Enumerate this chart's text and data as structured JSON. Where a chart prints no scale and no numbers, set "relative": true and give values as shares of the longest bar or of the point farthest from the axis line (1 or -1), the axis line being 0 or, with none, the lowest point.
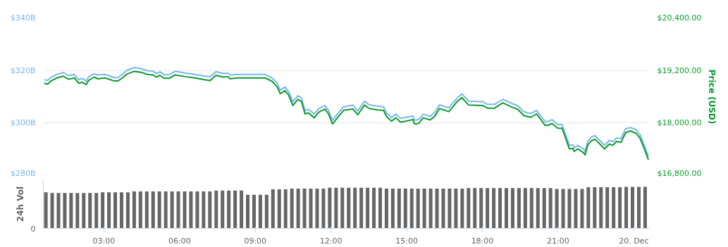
{
  "chart_data": [
    {
      "type": "line",
      "x": [
        0.63,
        0.77,
        0.9,
        1.14,
        1.39,
        1.6,
        1.83,
        2.0,
        2.14,
        2.3,
        2.39,
        2.62,
        2.76,
        3.04,
        3.41,
        3.55,
        3.73,
        3.92,
        4.2,
        4.48,
        4.71,
        4.94,
        5.08,
        5.22,
        5.4,
        5.59,
        5.82,
        6.24,
        6.61,
        6.98,
        7.21,
        7.44,
        7.72,
        7.91,
        8.0,
        8.28,
        9.11,
        9.39,
        9.67,
        9.86,
        9.99,
        10.18,
        10.32,
        10.49,
        10.69,
        10.83,
        10.97,
        11.11,
        11.34,
        11.52,
        11.76,
        11.9,
        12.06,
        12.27,
        12.5,
        12.73,
        12.87,
        13.06,
        13.33,
        13.52,
        13.85,
        14.08,
        14.2,
        14.4,
        14.57,
        14.75,
        14.96,
        15.24,
        15.31,
        15.47,
        15.66,
        15.93,
        16.12,
        16.3,
        16.67,
        17.0,
        17.19,
        17.46,
        18.02,
        18.2,
        18.48,
        18.81,
        19.18,
        19.41,
        19.64,
        19.92,
        20.15,
        20.48,
        20.62,
        20.76,
        20.99,
        21.16,
        21.45,
        21.59,
        21.64,
        21.78,
        22.01,
        22.07,
        22.17,
        22.33,
        22.47,
        22.84,
        23.03,
        23.17,
        23.31,
        23.49,
        23.68,
        23.87,
        24.1,
        24.24,
        24.42,
        24.58
      ],
      "series": [
        {
          "color": "#7cb5ec",
          "values": [
            316.5,
            316.2,
            317.4,
            318.5,
            319.2,
            318.1,
            318.5,
            316.5,
            317.0,
            316.0,
            317.6,
            318.8,
            318.3,
            318.5,
            317.3,
            317.3,
            318.5,
            320.1,
            321.1,
            320.7,
            319.9,
            319.8,
            318.8,
            319.5,
            318.4,
            318.4,
            319.7,
            319.0,
            318.5,
            317.9,
            317.6,
            319.5,
            318.9,
            319.0,
            318.3,
            318.5,
            318.5,
            318.5,
            317.1,
            315.3,
            312.5,
            313.7,
            312.0,
            308.1,
            310.4,
            309.5,
            304.8,
            305.2,
            303.4,
            305.5,
            306.7,
            304.8,
            301.1,
            303.6,
            306.2,
            306.6,
            306.8,
            304.6,
            308.3,
            306.9,
            306.4,
            306.2,
            303.9,
            302.1,
            303.4,
            301.8,
            302.1,
            302.7,
            301.1,
            301.3,
            303.4,
            302.5,
            304.1,
            306.9,
            305.8,
            309.5,
            311.1,
            308.3,
            308.1,
            307.1,
            307.1,
            309.0,
            307.4,
            306.6,
            304.3,
            303.6,
            304.8,
            300.6,
            300.6,
            301.3,
            299.4,
            299.4,
            291.5,
            291.7,
            290.6,
            291.5,
            290.1,
            289.2,
            292.9,
            294.8,
            295.2,
            291.5,
            293.4,
            292.9,
            294.3,
            294.1,
            297.8,
            298.3,
            297.4,
            295.7,
            291.5,
            287.3
          ]
        },
        {
          "color": "#0a9b30",
          "axis": "y2",
          "values": [
            18910,
            18890,
            18960,
            19030,
            19070,
            19000,
            19030,
            18910,
            18930,
            18880,
            18970,
            19050,
            19010,
            19030,
            18960,
            18960,
            19030,
            19120,
            19180,
            19160,
            19110,
            19100,
            19050,
            19090,
            19020,
            19020,
            19100,
            19060,
            19030,
            18990,
            18970,
            19090,
            19050,
            19060,
            19010,
            19030,
            19030,
            19030,
            18950,
            18830,
            18670,
            18740,
            18640,
            18400,
            18540,
            18490,
            18210,
            18230,
            18120,
            18250,
            18320,
            18210,
            17980,
            18130,
            18290,
            18310,
            18320,
            18190,
            18410,
            18330,
            18300,
            18290,
            18150,
            18040,
            18120,
            18020,
            18040,
            18080,
            17980,
            17990,
            18120,
            18070,
            18160,
            18330,
            18260,
            18490,
            18580,
            18410,
            18400,
            18340,
            18340,
            18460,
            18360,
            18310,
            18170,
            18130,
            18210,
            17950,
            17950,
            17990,
            17880,
            17880,
            17410,
            17420,
            17350,
            17410,
            17320,
            17270,
            17490,
            17600,
            17630,
            17410,
            17520,
            17490,
            17580,
            17560,
            17780,
            17820,
            17760,
            17660,
            17410,
            17160
          ]
        }
      ],
      "xlim": [
        0.6,
        24.62
      ],
      "ylim": [
        280,
        340
      ],
      "yticks": [
        {
          "value": 280,
          "label": "$280B"
        },
        {
          "value": 300,
          "label": "$300B"
        },
        {
          "value": 320,
          "label": "$320B"
        },
        {
          "value": 340,
          "label": "$340B"
        }
      ],
      "y2lim": [
        16800,
        20400
      ],
      "y2ticks": [
        {
          "value": 16800,
          "label": "$16,800.00"
        },
        {
          "value": 18000,
          "label": "$18,000.00"
        },
        {
          "value": 19200,
          "label": "$19,200.00"
        },
        {
          "value": 20400,
          "label": "$20,400.00"
        }
      ],
      "y2label": "Price (USD)",
      "grid": "y",
      "tick_labels": "y"
    },
    {
      "type": "bar",
      "relative": true,
      "ylabel": "24h Vol",
      "annotations": [
        "0"
      ],
      "color": "#666666",
      "x": [
        0.7,
        0.95,
        1.2,
        1.45,
        1.7,
        1.95,
        2.2,
        2.45,
        2.7,
        2.95,
        3.2,
        3.45,
        3.7,
        3.95,
        4.2,
        4.45,
        4.7,
        4.95,
        5.2,
        5.45,
        5.7,
        5.95,
        6.2,
        6.45,
        6.7,
        6.95,
        7.2,
        7.45,
        7.7,
        7.95,
        8.2,
        8.45,
        8.7,
        8.95,
        9.2,
        9.45,
        9.7,
        9.95,
        10.2,
        10.45,
        10.7,
        10.95,
        11.2,
        11.45,
        11.7,
        11.95,
        12.2,
        12.45,
        12.7,
        12.95,
        13.2,
        13.45,
        13.7,
        13.95,
        14.2,
        14.45,
        14.7,
        14.95,
        15.2,
        15.45,
        15.7,
        15.95,
        16.2,
        16.45,
        16.7,
        16.95,
        17.2,
        17.45,
        17.7,
        17.95,
        18.2,
        18.45,
        18.7,
        18.95,
        19.2,
        19.45,
        19.7,
        19.95,
        20.2,
        20.45,
        20.7,
        20.95,
        21.2,
        21.45,
        21.7,
        21.95,
        22.2,
        22.45,
        22.7,
        22.95,
        23.2,
        23.45,
        23.7,
        23.95,
        24.2,
        24.45
      ],
      "values": [
        0.87,
        0.85,
        0.85,
        0.85,
        0.85,
        0.85,
        0.85,
        0.85,
        0.85,
        0.87,
        0.87,
        0.87,
        0.87,
        0.87,
        0.89,
        0.89,
        0.89,
        0.89,
        0.89,
        0.89,
        0.89,
        0.89,
        0.89,
        0.89,
        0.89,
        0.89,
        0.89,
        0.91,
        0.91,
        0.91,
        0.91,
        0.91,
        0.81,
        0.81,
        0.81,
        0.81,
        0.94,
        0.94,
        0.94,
        0.96,
        0.96,
        0.96,
        0.96,
        0.96,
        0.96,
        0.98,
        0.98,
        0.98,
        0.98,
        0.98,
        0.98,
        0.98,
        0.98,
        0.98,
        0.96,
        0.96,
        0.96,
        0.96,
        0.96,
        0.96,
        0.96,
        0.96,
        0.96,
        0.96,
        0.96,
        0.96,
        0.96,
        0.97,
        0.97,
        0.97,
        0.97,
        0.97,
        0.97,
        0.97,
        0.97,
        0.97,
        0.97,
        0.97,
        0.97,
        0.97,
        0.97,
        0.95,
        0.95,
        0.95,
        0.95,
        0.95,
        0.99,
        0.99,
        0.99,
        0.99,
        0.99,
        0.99,
        1,
        1,
        1,
        1
      ],
      "xlim": [
        0.6,
        24.62
      ],
      "xticks": [
        {
          "value": 3,
          "label": "03:00"
        },
        {
          "value": 6,
          "label": "06:00"
        },
        {
          "value": 9,
          "label": "09:00"
        },
        {
          "value": 12,
          "label": "12:00"
        },
        {
          "value": 15,
          "label": "15:00"
        },
        {
          "value": 18,
          "label": "18:00"
        },
        {
          "value": 21,
          "label": "21:00"
        },
        {
          "value": 24,
          "label": "20. Dec"
        }
      ]
    }
  ]
}
